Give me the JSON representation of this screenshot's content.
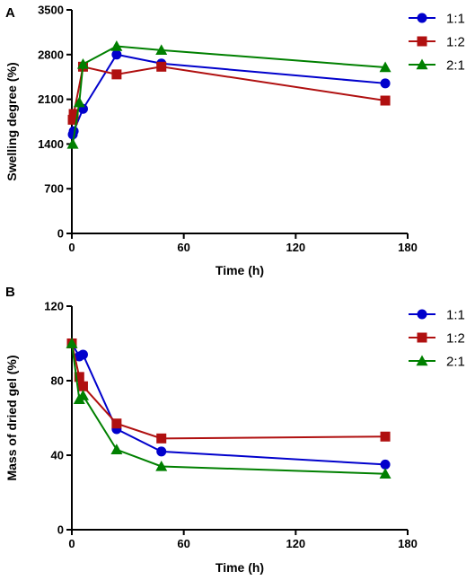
{
  "chart_data": [
    {
      "panel": "A",
      "type": "line",
      "xlabel": "Time (h)",
      "ylabel": "Swelling degree (%)",
      "xlim": [
        0,
        180
      ],
      "ylim": [
        0,
        3500
      ],
      "xticks": [
        0,
        60,
        120,
        180
      ],
      "yticks": [
        0,
        700,
        1400,
        2100,
        2800,
        3500
      ],
      "grid": false,
      "legend": "top-right",
      "series": [
        {
          "name": "1:1",
          "color": "#0000CC",
          "marker": "circle",
          "x": [
            0.5,
            1,
            6,
            24,
            48,
            168
          ],
          "y": [
            1550,
            1600,
            1950,
            2800,
            2660,
            2350
          ]
        },
        {
          "name": "1:2",
          "color": "#B01010",
          "marker": "square",
          "x": [
            0.5,
            1,
            6,
            24,
            48,
            168
          ],
          "y": [
            1780,
            1870,
            2610,
            2490,
            2610,
            2080
          ]
        },
        {
          "name": "2:1",
          "color": "#008000",
          "marker": "triangle",
          "x": [
            0.5,
            4,
            6,
            24,
            48,
            168
          ],
          "y": [
            1400,
            2050,
            2650,
            2930,
            2870,
            2600
          ]
        }
      ]
    },
    {
      "panel": "B",
      "type": "line",
      "xlabel": "Time (h)",
      "ylabel": "Mass of dried gel (%)",
      "xlim": [
        0,
        180
      ],
      "ylim": [
        0,
        120
      ],
      "xticks": [
        0,
        60,
        120,
        180
      ],
      "yticks": [
        0,
        40,
        80,
        120
      ],
      "grid": false,
      "legend": "top-right",
      "series": [
        {
          "name": "1:1",
          "color": "#0000CC",
          "marker": "circle",
          "x": [
            0,
            4,
            6,
            24,
            48,
            168
          ],
          "y": [
            100,
            93,
            94,
            54,
            42,
            35
          ]
        },
        {
          "name": "1:2",
          "color": "#B01010",
          "marker": "square",
          "x": [
            0,
            4,
            6,
            24,
            48,
            168
          ],
          "y": [
            100,
            82,
            77,
            57,
            49,
            50
          ]
        },
        {
          "name": "2:1",
          "color": "#008000",
          "marker": "triangle",
          "x": [
            0,
            4,
            6,
            24,
            48,
            168
          ],
          "y": [
            100,
            70,
            72,
            43,
            34,
            30
          ]
        }
      ]
    }
  ]
}
